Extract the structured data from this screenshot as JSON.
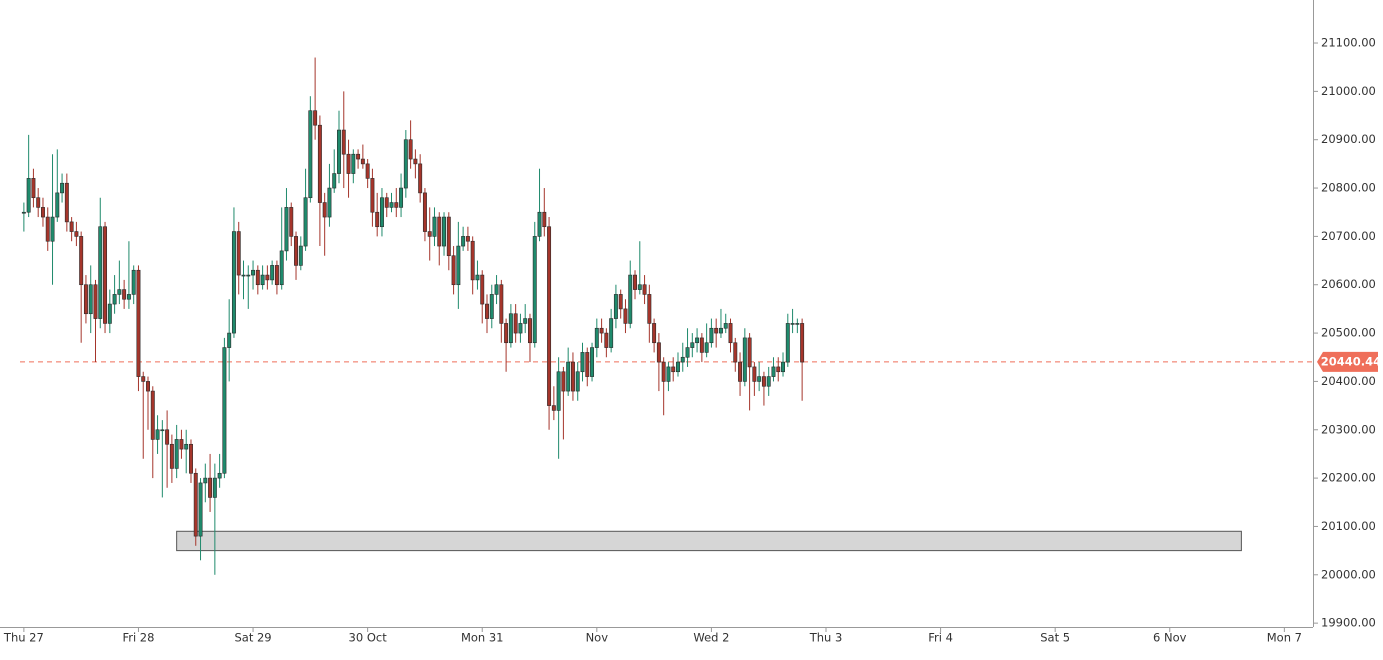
{
  "chart_data": {
    "type": "candlestick",
    "open": [
      20750,
      20750,
      20820,
      20780,
      20760,
      20740,
      20690,
      20740,
      20790,
      20810,
      20730,
      20710,
      20700,
      20600,
      20540,
      20600,
      20530,
      20720,
      20520,
      20560,
      20580,
      20590,
      20570,
      20580,
      20630,
      20410,
      20400,
      20380,
      20280,
      20300,
      20300,
      20270,
      20220,
      20280,
      20260,
      20270,
      20210,
      20080,
      20190,
      20200,
      20160,
      20200,
      20210,
      20470,
      20500,
      20710,
      20620,
      20620,
      20620,
      20630,
      20600,
      20620,
      20610,
      20640,
      20600,
      20670,
      20760,
      20700,
      20640,
      20680,
      20780,
      20960,
      20930,
      20770,
      20740,
      20800,
      20830,
      20920,
      20870,
      20830,
      20870,
      20860,
      20850,
      20820,
      20750,
      20720,
      20780,
      20760,
      20770,
      20760,
      20800,
      20900,
      20860,
      20850,
      20790,
      20710,
      20700,
      20740,
      20680,
      20740,
      20660,
      20600,
      20680,
      20700,
      20690,
      20610,
      20620,
      20560,
      20530,
      20580,
      20600,
      20520,
      20480,
      20540,
      20500,
      20520,
      20530,
      20480,
      20700,
      20750,
      20720,
      20350,
      20340,
      20420,
      20380,
      20440,
      20380,
      20420,
      20460,
      20410,
      20470,
      20510,
      20500,
      20470,
      20530,
      20580,
      20550,
      20520,
      20620,
      20590,
      20600,
      20580,
      20520,
      20480,
      20440,
      20400,
      20430,
      20420,
      20440,
      20450,
      20470,
      20480,
      20490,
      20460,
      20480,
      20510,
      20500,
      20510,
      20520,
      20480,
      20440,
      20400,
      20490,
      20430,
      20400,
      20410,
      20390,
      20410,
      20430,
      20420,
      20440,
      20520,
      20520,
      20520
    ],
    "high": [
      20770,
      20910,
      20840,
      20800,
      20780,
      20760,
      20870,
      20880,
      20830,
      20830,
      20740,
      20730,
      20710,
      20620,
      20640,
      20610,
      20780,
      20730,
      20590,
      20620,
      20650,
      20610,
      20690,
      20640,
      20640,
      20420,
      20410,
      20390,
      20330,
      20320,
      20340,
      20290,
      20310,
      20300,
      20300,
      20280,
      20220,
      20200,
      20230,
      20250,
      20230,
      20250,
      20490,
      20570,
      20760,
      20730,
      20650,
      20640,
      20650,
      20640,
      20640,
      20640,
      20650,
      20650,
      20760,
      20800,
      20770,
      20710,
      20700,
      20840,
      20990,
      21070,
      20950,
      20790,
      20850,
      20880,
      20960,
      21000,
      20900,
      20880,
      20880,
      20890,
      20860,
      20840,
      20790,
      20800,
      20790,
      20790,
      20800,
      20830,
      20920,
      20940,
      20880,
      20870,
      20800,
      20760,
      20760,
      20750,
      20750,
      20750,
      20680,
      20730,
      20720,
      20720,
      20700,
      20650,
      20630,
      20580,
      20600,
      20620,
      20610,
      20530,
      20560,
      20560,
      20540,
      20560,
      20540,
      20730,
      20840,
      20800,
      20740,
      20390,
      20450,
      20430,
      20470,
      20460,
      20440,
      20480,
      20470,
      20480,
      20530,
      20530,
      20510,
      20550,
      20600,
      20590,
      20570,
      20650,
      20630,
      20690,
      20620,
      20600,
      20530,
      20500,
      20450,
      20440,
      20450,
      20460,
      20480,
      20510,
      20500,
      20510,
      20500,
      20520,
      20530,
      20530,
      20550,
      20540,
      20530,
      20490,
      20460,
      20510,
      20500,
      20440,
      20440,
      20420,
      20430,
      20450,
      20450,
      20460,
      20540,
      20550,
      20530,
      20530
    ],
    "low": [
      20710,
      20740,
      20760,
      20740,
      20720,
      20670,
      20600,
      20730,
      20770,
      20710,
      20690,
      20680,
      20480,
      20520,
      20500,
      20440,
      20510,
      20500,
      20500,
      20540,
      20560,
      20550,
      20550,
      20560,
      20380,
      20240,
      20300,
      20200,
      20250,
      20160,
      20180,
      20190,
      20200,
      20240,
      20210,
      20190,
      20060,
      20030,
      20150,
      20130,
      20000,
      20180,
      20200,
      20400,
      20490,
      20580,
      20570,
      20550,
      20590,
      20580,
      20590,
      20590,
      20600,
      20580,
      20590,
      20650,
      20680,
      20610,
      20630,
      20670,
      20770,
      20900,
      20680,
      20660,
      20720,
      20790,
      20810,
      20800,
      20780,
      20810,
      20840,
      20840,
      20800,
      20720,
      20700,
      20700,
      20740,
      20750,
      20740,
      20740,
      20780,
      20840,
      20820,
      20770,
      20690,
      20650,
      20680,
      20640,
      20660,
      20630,
      20580,
      20550,
      20670,
      20670,
      20580,
      20590,
      20520,
      20500,
      20510,
      20560,
      20480,
      20420,
      20470,
      20480,
      20480,
      20500,
      20440,
      20470,
      20690,
      20700,
      20300,
      20320,
      20240,
      20280,
      20370,
      20360,
      20360,
      20400,
      20390,
      20400,
      20450,
      20480,
      20450,
      20460,
      20510,
      20530,
      20500,
      20510,
      20570,
      20580,
      20560,
      20480,
      20460,
      20380,
      20330,
      20380,
      20400,
      20410,
      20420,
      20430,
      20450,
      20460,
      20440,
      20450,
      20470,
      20470,
      20490,
      20500,
      20460,
      20420,
      20370,
      20390,
      20340,
      20370,
      20380,
      20350,
      20370,
      20400,
      20400,
      20410,
      20430,
      20500,
      20500,
      20360
    ],
    "close": [
      20750,
      20820,
      20780,
      20760,
      20740,
      20690,
      20740,
      20790,
      20810,
      20730,
      20710,
      20700,
      20600,
      20540,
      20600,
      20530,
      20720,
      20520,
      20560,
      20580,
      20590,
      20570,
      20580,
      20630,
      20410,
      20400,
      20380,
      20280,
      20300,
      20300,
      20270,
      20220,
      20280,
      20260,
      20270,
      20210,
      20080,
      20190,
      20200,
      20160,
      20200,
      20210,
      20470,
      20500,
      20710,
      20620,
      20620,
      20620,
      20630,
      20600,
      20620,
      20610,
      20640,
      20600,
      20670,
      20760,
      20700,
      20640,
      20680,
      20780,
      20960,
      20930,
      20770,
      20740,
      20800,
      20830,
      20920,
      20870,
      20830,
      20870,
      20860,
      20850,
      20820,
      20750,
      20720,
      20780,
      20760,
      20770,
      20760,
      20800,
      20900,
      20860,
      20850,
      20790,
      20710,
      20700,
      20740,
      20680,
      20740,
      20660,
      20600,
      20680,
      20700,
      20690,
      20610,
      20620,
      20560,
      20530,
      20580,
      20600,
      20520,
      20480,
      20540,
      20500,
      20520,
      20530,
      20480,
      20700,
      20750,
      20720,
      20350,
      20340,
      20420,
      20380,
      20440,
      20380,
      20420,
      20460,
      20410,
      20470,
      20510,
      20500,
      20470,
      20530,
      20580,
      20550,
      20520,
      20620,
      20590,
      20600,
      20580,
      20520,
      20480,
      20440,
      20400,
      20430,
      20420,
      20440,
      20450,
      20470,
      20480,
      20490,
      20460,
      20480,
      20510,
      20500,
      20510,
      20520,
      20480,
      20440,
      20400,
      20490,
      20430,
      20400,
      20410,
      20390,
      20410,
      20430,
      20420,
      20440,
      20520,
      20520,
      20520,
      20440
    ],
    "up_color": "#1f8a6c",
    "down_color": "#a5352b",
    "xlim": [
      -5,
      270
    ],
    "xticks": [
      {
        "value": 0,
        "label": "Thu 27"
      },
      {
        "value": 24,
        "label": "Fri 28"
      },
      {
        "value": 48,
        "label": "Sat 29"
      },
      {
        "value": 72,
        "label": "30 Oct"
      },
      {
        "value": 96,
        "label": "Mon 31"
      },
      {
        "value": 120,
        "label": "Nov"
      },
      {
        "value": 144,
        "label": "Wed 2"
      },
      {
        "value": 168,
        "label": "Thu 3"
      },
      {
        "value": 192,
        "label": "Fri 4"
      },
      {
        "value": 216,
        "label": "Sat 5"
      },
      {
        "value": 240,
        "label": "6 Nov"
      },
      {
        "value": 264,
        "label": "Mon 7"
      }
    ],
    "ylim": [
      19892,
      21189
    ],
    "yticks": [
      {
        "value": 19900,
        "label": "19900.00"
      },
      {
        "value": 20000,
        "label": "20000.00"
      },
      {
        "value": 20100,
        "label": "20100.00"
      },
      {
        "value": 20200,
        "label": "20200.00"
      },
      {
        "value": 20300,
        "label": "20300.00"
      },
      {
        "value": 20400,
        "label": "20400.00"
      },
      {
        "value": 20500,
        "label": "20500.00"
      },
      {
        "value": 20600,
        "label": "20600.00"
      },
      {
        "value": 20700,
        "label": "20700.00"
      },
      {
        "value": 20800,
        "label": "20800.00"
      },
      {
        "value": 20900,
        "label": "20900.00"
      },
      {
        "value": 21000,
        "label": "21000.00"
      },
      {
        "value": 21100,
        "label": "21100.00"
      }
    ],
    "price_line": {
      "value": 20440.44,
      "color": "#ef6f5a"
    },
    "zone": {
      "x": [
        32,
        255
      ],
      "y": [
        20050,
        20090
      ],
      "color": "#d6d6d6"
    }
  }
}
